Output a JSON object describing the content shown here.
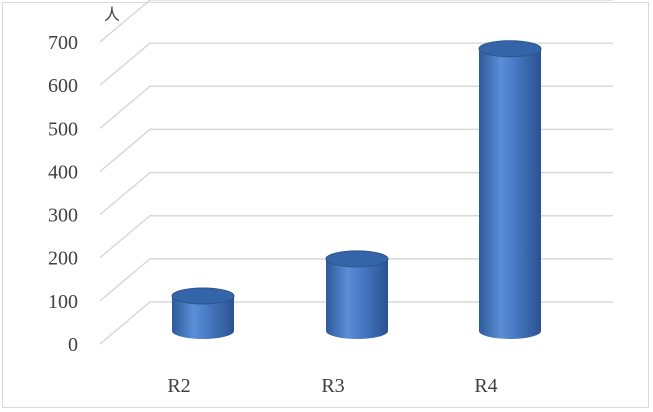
{
  "chart_data": {
    "type": "bar",
    "style": "3d-cylinder",
    "unit": "人",
    "categories": [
      "R2",
      "R3",
      "R4"
    ],
    "values": [
      85,
      175,
      685
    ],
    "ylim": [
      0,
      700
    ],
    "yticks": [
      0,
      100,
      200,
      300,
      400,
      500,
      600,
      700
    ],
    "grid": true,
    "legend": "none",
    "bar_color": "#4472c4"
  }
}
